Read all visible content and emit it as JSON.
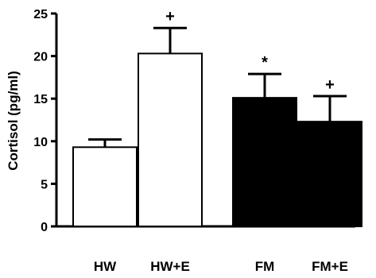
{
  "chart_data": {
    "type": "bar",
    "title": "",
    "xlabel": "",
    "ylabel": "Cortisol (pg/ml)",
    "ylim": [
      0,
      25
    ],
    "yticks": [
      0,
      5,
      10,
      15,
      20,
      25
    ],
    "grid": false,
    "legend": "none",
    "categories": [
      "HW",
      "HW+E",
      "FM",
      "FM+E"
    ],
    "values": [
      9.3,
      20.3,
      15.1,
      12.3
    ],
    "error_upper": [
      0.9,
      3.0,
      2.8,
      3.0
    ],
    "annotations": [
      "",
      "+",
      "*",
      "+"
    ],
    "bar_fill_colors": [
      "#ffffff",
      "#ffffff",
      "#000000",
      "#000000"
    ],
    "bar_stroke_color": "#000000"
  }
}
